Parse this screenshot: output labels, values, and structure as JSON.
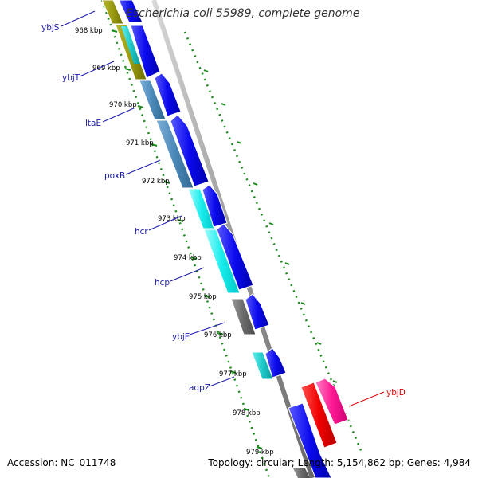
{
  "title": "Escherichia coli 55989, complete genome",
  "footer": {
    "accession": "Accession: NC_011748",
    "summary": "Topology: circular; Length: 5,154,862 bp; Genes: 4,984"
  },
  "colors": {
    "forward_cds": "#0000ee",
    "feature_label": "#1a1aa8",
    "highlight": "#dd0000",
    "highlight_pink": "#ff1493",
    "backbone": "#999999",
    "tick": "#1a8a1a"
  },
  "ticks": [
    {
      "label": "968 kbp"
    },
    {
      "label": "969 kbp"
    },
    {
      "label": "970 kbp"
    },
    {
      "label": "971 kbp"
    },
    {
      "label": "972 kbp"
    },
    {
      "label": "973 kbp"
    },
    {
      "label": "974 kbp"
    },
    {
      "label": "975 kbp"
    },
    {
      "label": "976 kbp"
    },
    {
      "label": "977 kbp"
    },
    {
      "label": "978 kbp"
    },
    {
      "label": "979 kbp"
    }
  ],
  "genes": [
    {
      "name": "ybjS"
    },
    {
      "name": "ybjT"
    },
    {
      "name": "ltaE"
    },
    {
      "name": "poxB"
    },
    {
      "name": "hcr"
    },
    {
      "name": "hcp"
    },
    {
      "name": "ybjE"
    },
    {
      "name": "aqpZ"
    },
    {
      "name": "ybjD"
    }
  ]
}
